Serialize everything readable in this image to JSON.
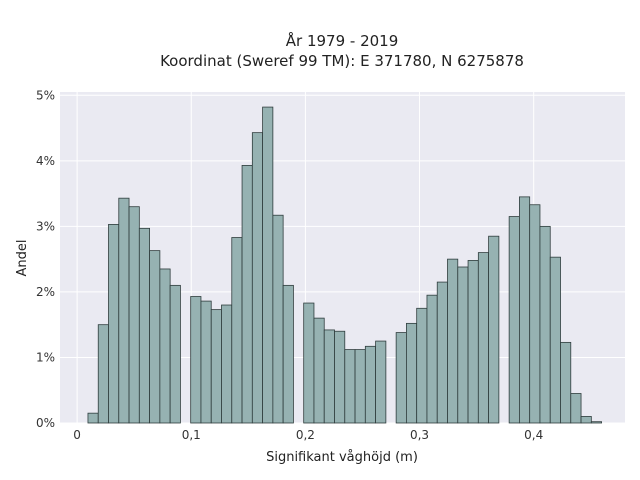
{
  "chart_data": {
    "type": "bar",
    "title_lines": [
      "År 1979 - 2019",
      "Koordinat (Sweref 99 TM): E 371780, N 6275878"
    ],
    "xlabel": "Signifikant våghöjd (m)",
    "ylabel": "Andel",
    "xlim": [
      -0.015,
      0.48
    ],
    "ylim": [
      0,
      5.05
    ],
    "xticks": [
      0,
      0.1,
      0.2,
      0.3,
      0.4
    ],
    "xtick_labels": [
      "0",
      "0,1",
      "0,2",
      "0,3",
      "0,4"
    ],
    "yticks": [
      0,
      1,
      2,
      3,
      4,
      5
    ],
    "ytick_labels": [
      "0%",
      "1%",
      "2%",
      "3%",
      "4%",
      "5%"
    ],
    "bin_width": 0.009,
    "x": [
      0.014,
      0.023,
      0.032,
      0.041,
      0.05,
      0.059,
      0.068,
      0.077,
      0.086,
      0.104,
      0.113,
      0.122,
      0.131,
      0.14,
      0.149,
      0.158,
      0.167,
      0.176,
      0.185,
      0.203,
      0.212,
      0.221,
      0.23,
      0.239,
      0.248,
      0.257,
      0.266,
      0.284,
      0.293,
      0.302,
      0.311,
      0.32,
      0.329,
      0.338,
      0.347,
      0.356,
      0.365,
      0.383,
      0.392,
      0.401,
      0.41,
      0.419,
      0.428,
      0.437,
      0.446,
      0.455
    ],
    "values": [
      0.15,
      1.5,
      3.03,
      3.43,
      3.3,
      2.97,
      2.63,
      2.35,
      2.1,
      1.93,
      1.86,
      1.73,
      1.8,
      2.83,
      3.93,
      4.43,
      4.82,
      3.17,
      2.1,
      1.83,
      1.6,
      1.42,
      1.4,
      1.12,
      1.12,
      1.17,
      1.25,
      1.38,
      1.52,
      1.75,
      1.95,
      2.15,
      2.5,
      2.38,
      2.48,
      2.6,
      2.85,
      3.15,
      3.45,
      3.33,
      3.0,
      2.53,
      1.23,
      0.45,
      0.1,
      0.02
    ],
    "grid": true,
    "colors": {
      "bar_fill": "#96b2b2",
      "bar_edge": "#2f3d3d",
      "plot_bg": "#eaeaf2",
      "grid": "#ffffff"
    }
  }
}
